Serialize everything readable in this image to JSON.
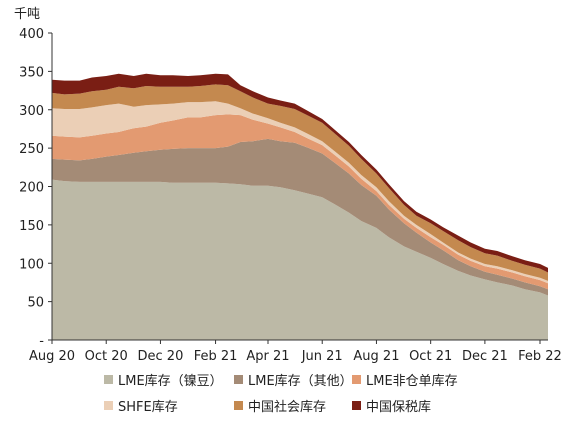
{
  "chart_data": {
    "type": "area",
    "stacked": true,
    "unit_label": "千吨",
    "x": [
      "2020-08-01",
      "2020-08-15",
      "2020-09-01",
      "2020-09-15",
      "2020-10-01",
      "2020-10-15",
      "2020-11-01",
      "2020-11-15",
      "2020-12-01",
      "2020-12-15",
      "2021-01-01",
      "2021-01-15",
      "2021-02-01",
      "2021-02-15",
      "2021-03-01",
      "2021-03-15",
      "2021-04-01",
      "2021-04-15",
      "2021-05-01",
      "2021-05-15",
      "2021-06-01",
      "2021-06-15",
      "2021-07-01",
      "2021-07-15",
      "2021-08-01",
      "2021-08-15",
      "2021-09-01",
      "2021-09-15",
      "2021-10-01",
      "2021-10-15",
      "2021-11-01",
      "2021-11-15",
      "2021-12-01",
      "2021-12-15",
      "2022-01-01",
      "2022-01-15",
      "2022-02-01",
      "2022-02-10"
    ],
    "x_ticks": [
      {
        "date": "2020-08-01",
        "label": "Aug 20"
      },
      {
        "date": "2020-10-01",
        "label": "Oct 20"
      },
      {
        "date": "2020-12-01",
        "label": "Dec 20"
      },
      {
        "date": "2021-02-01",
        "label": "Feb 21"
      },
      {
        "date": "2021-04-01",
        "label": "Apr 21"
      },
      {
        "date": "2021-06-01",
        "label": "Jun 21"
      },
      {
        "date": "2021-08-01",
        "label": "Aug 21"
      },
      {
        "date": "2021-10-01",
        "label": "Oct 21"
      },
      {
        "date": "2021-12-01",
        "label": "Dec 21"
      },
      {
        "date": "2022-02-01",
        "label": "Feb 22"
      }
    ],
    "y_ticks": [
      "-",
      "50",
      "100",
      "150",
      "200",
      "250",
      "300",
      "350",
      "400"
    ],
    "ylim": [
      0,
      400
    ],
    "series": [
      {
        "name": "LME库存（镍豆）",
        "color": "#bcb9a6",
        "values": [
          209,
          207,
          206,
          206,
          206,
          206,
          206,
          206,
          206,
          205,
          205,
          205,
          205,
          204,
          203,
          201,
          201,
          199,
          195,
          191,
          186,
          177,
          166,
          155,
          146,
          134,
          122,
          115,
          107,
          99,
          90,
          84,
          79,
          75,
          71,
          66,
          62,
          58
        ]
      },
      {
        "name": "LME库存（其他）",
        "color": "#a48b76",
        "values": [
          27,
          28,
          28,
          30,
          33,
          35,
          38,
          40,
          42,
          44,
          45,
          45,
          45,
          48,
          55,
          58,
          61,
          60,
          62,
          60,
          57,
          54,
          51,
          47,
          42,
          36,
          30,
          25,
          20,
          18,
          14,
          12,
          10,
          10,
          9,
          9,
          8,
          8
        ]
      },
      {
        "name": "LME非仓单库存",
        "color": "#e39a71",
        "values": [
          30,
          30,
          30,
          30,
          30,
          30,
          32,
          32,
          35,
          37,
          40,
          40,
          43,
          42,
          35,
          28,
          20,
          18,
          14,
          12,
          11,
          10,
          9,
          8,
          6,
          6,
          6,
          6,
          7,
          7,
          7,
          7,
          7,
          8,
          8,
          8,
          8,
          8
        ]
      },
      {
        "name": "SHFE库存",
        "color": "#ebcfb6",
        "values": [
          36,
          36,
          37,
          37,
          37,
          37,
          28,
          28,
          24,
          22,
          20,
          20,
          18,
          14,
          9,
          8,
          7,
          6,
          6,
          6,
          5,
          5,
          5,
          5,
          5,
          5,
          4,
          4,
          4,
          3,
          3,
          3,
          3,
          3,
          3,
          3,
          3,
          3
        ]
      },
      {
        "name": "中国社会库存",
        "color": "#c4894f",
        "values": [
          20,
          19,
          20,
          21,
          20,
          22,
          24,
          25,
          23,
          22,
          20,
          21,
          22,
          24,
          22,
          21,
          19,
          22,
          24,
          24,
          24,
          23,
          22,
          21,
          18,
          17,
          14,
          12,
          14,
          15,
          16,
          15,
          14,
          14,
          12,
          12,
          12,
          11
        ]
      },
      {
        "name": "中国保税库",
        "color": "#7a1e14",
        "values": [
          17,
          18,
          17,
          18,
          18,
          17,
          16,
          16,
          15,
          15,
          14,
          14,
          14,
          14,
          8,
          8,
          8,
          7,
          7,
          6,
          5,
          5,
          5,
          5,
          5,
          5,
          5,
          5,
          5,
          5,
          6,
          6,
          6,
          6,
          6,
          6,
          6,
          6
        ]
      }
    ],
    "legend_position": "bottom",
    "grid": false
  }
}
